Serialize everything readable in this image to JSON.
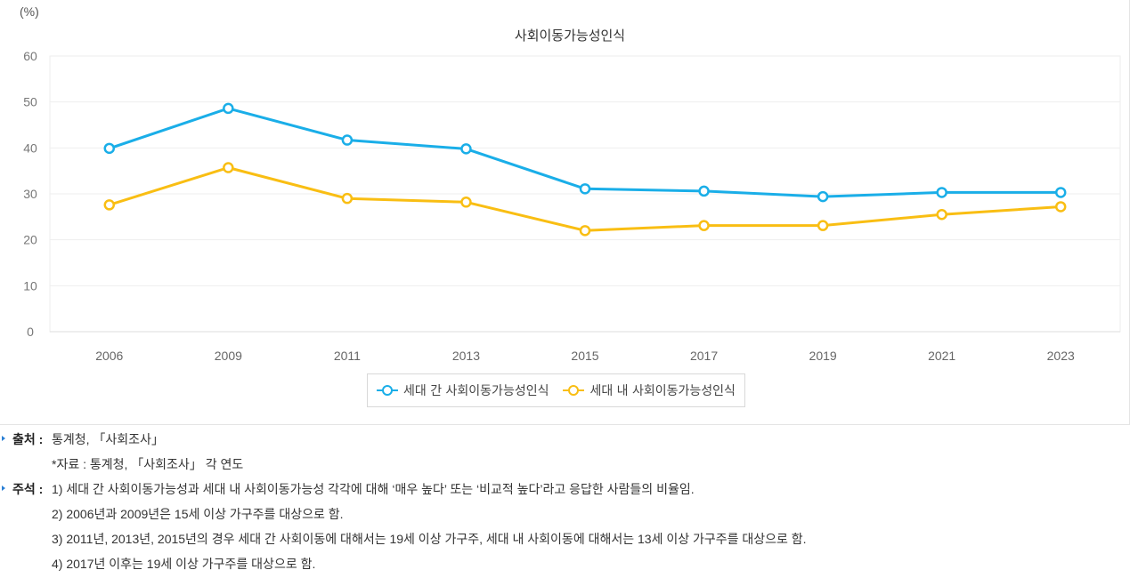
{
  "chart_data": {
    "type": "line",
    "title": "사회이동가능성인식",
    "unit_label": "(%)",
    "categories": [
      "2006",
      "2009",
      "2011",
      "2013",
      "2015",
      "2017",
      "2019",
      "2021",
      "2023"
    ],
    "y_ticks": [
      "0",
      "10",
      "20",
      "30",
      "40",
      "50",
      "60"
    ],
    "ylim": [
      0,
      60
    ],
    "grid": true,
    "legend_position": "bottom-center",
    "series": [
      {
        "name": "세대 간 사회이동가능성인식",
        "color": "#1aaee8",
        "values": [
          39.9,
          48.6,
          41.7,
          39.8,
          31.1,
          30.6,
          29.4,
          30.3,
          30.3
        ]
      },
      {
        "name": "세대 내 사회이동가능성인식",
        "color": "#f9be13",
        "values": [
          27.6,
          35.7,
          29.0,
          28.2,
          22.0,
          23.1,
          23.1,
          25.5,
          27.2
        ]
      }
    ]
  },
  "notes": {
    "source_label": "출처 :",
    "source_text": "통계청, 「사회조사」",
    "source_detail": "*자료 : 통계청, 「사회조사」 각 연도",
    "footnote_label": "주석 :",
    "footnotes": [
      "1) 세대 간 사회이동가능성과 세대 내 사회이동가능성 각각에 대해 ‘매우 높다’ 또는 ‘비교적 높다’라고 응답한 사람들의 비율임.",
      "2) 2006년과 2009년은 15세 이상 가구주를 대상으로 함.",
      "3) 2011년, 2013년, 2015년의 경우 세대 간 사회이동에 대해서는 19세 이상 가구주, 세대 내 사회이동에 대해서는 13세 이상 가구주를 대상으로 함.",
      "4) 2017년 이후는 19세 이상 가구주를 대상으로 함."
    ]
  }
}
